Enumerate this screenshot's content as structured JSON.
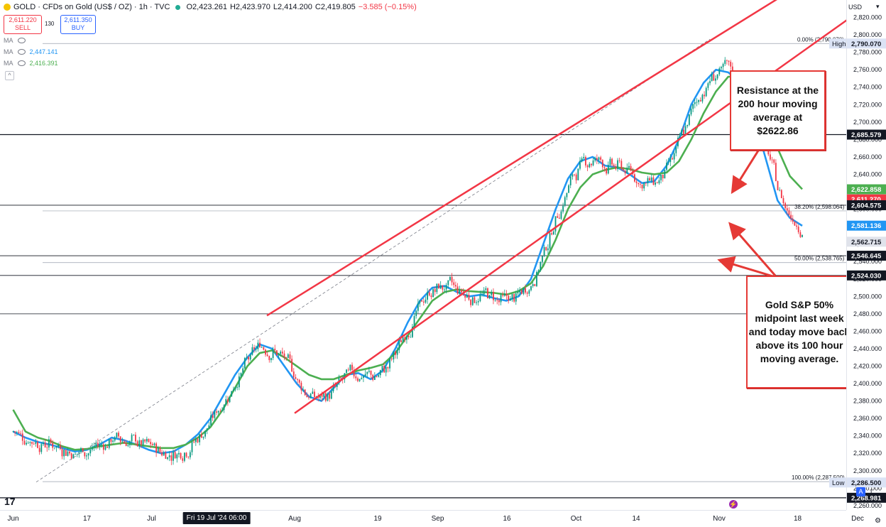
{
  "header": {
    "symbol": "GOLD · CFDs on Gold (US$ / OZ) · 1h · TVC",
    "open": "O2,423.261",
    "high": "H2,423.970",
    "low": "L2,414.200",
    "close": "C2,419.805",
    "change": "−3.585 (−0.15%)"
  },
  "trade": {
    "sell_price": "2,611.220",
    "sell_label": "SELL",
    "spread": "130",
    "buy_price": "2,611.350",
    "buy_label": "BUY"
  },
  "indicators": [
    {
      "label": "MA",
      "value": ""
    },
    {
      "label": "MA",
      "value": "2,447.141",
      "color": "#2196f3"
    },
    {
      "label": "MA",
      "value": "2,416.391",
      "color": "#4caf50"
    }
  ],
  "currency": "USD",
  "annotations": {
    "top": "Resistance at the 200 hour moving average at $2622.86",
    "bottom": "Gold S&P 50% midpoint last week and today move back above its 100 hour moving average."
  },
  "x_axis": {
    "crosshair_label": "Fri 19 Jul '24  06:00"
  },
  "chart_data": {
    "type": "line",
    "title": "",
    "xlabel": "",
    "ylabel": "",
    "ylim": [
      2255,
      2840
    ],
    "x_ticks": [
      "Jun",
      "17",
      "Jul",
      "Aug",
      "19",
      "Sep",
      "16",
      "Oct",
      "14",
      "Nov",
      "18",
      "Dec"
    ],
    "y_ticks": [
      2260,
      2280,
      2300,
      2320,
      2340,
      2360,
      2380,
      2400,
      2420,
      2440,
      2460,
      2480,
      2500,
      2520,
      2540,
      2560,
      2580,
      2600,
      2620,
      2640,
      2660,
      2680,
      2700,
      2720,
      2740,
      2760,
      2780,
      2800,
      2820
    ],
    "price_labels": [
      {
        "label": "2,790.070",
        "value": 2790.07,
        "color": "#dbe3f5",
        "text_color": "#131722",
        "tag": "High"
      },
      {
        "label": "2,685.579",
        "value": 2685.579,
        "color": "#131722",
        "text_color": "#ffffff"
      },
      {
        "label": "2,622.858",
        "value": 2622.858,
        "color": "#4caf50",
        "text_color": "#ffffff"
      },
      {
        "label": "2,611.270",
        "value": 2611.27,
        "color": "#f23645",
        "text_color": "#ffffff"
      },
      {
        "label": "2,604.575",
        "value": 2604.575,
        "color": "#131722",
        "text_color": "#ffffff"
      },
      {
        "label": "2,581.136",
        "value": 2581.136,
        "color": "#2196f3",
        "text_color": "#ffffff"
      },
      {
        "label": "2,562.715",
        "value": 2562.715,
        "color": "#e0e3eb",
        "text_color": "#131722"
      },
      {
        "label": "2,546.645",
        "value": 2546.645,
        "color": "#131722",
        "text_color": "#ffffff"
      },
      {
        "label": "2,524.030",
        "value": 2524.03,
        "color": "#131722",
        "text_color": "#ffffff"
      },
      {
        "label": "2,286.500",
        "value": 2286.5,
        "color": "#dbe3f5",
        "text_color": "#131722",
        "tag": "Low"
      },
      {
        "label": "2,268.981",
        "value": 2268.981,
        "color": "#131722",
        "text_color": "#ffffff"
      }
    ],
    "fib_levels": [
      {
        "label": "0.00% (2,790.070)",
        "value": 2790.07
      },
      {
        "label": "38.20% (2,598.064)",
        "value": 2598.064
      },
      {
        "label": "50.00% (2,538.765)",
        "value": 2538.765
      },
      {
        "label": "100.00% (2,287.500)",
        "value": 2287.5
      }
    ],
    "horizontal_lines": [
      2685.579,
      2604.575,
      2546.645,
      2524.03,
      2480,
      2268.981
    ],
    "series": [
      {
        "name": "MA",
        "color": "#2196f3",
        "values": [
          2345,
          2338,
          2333,
          2330,
          2326,
          2322,
          2324,
          2330,
          2338,
          2335,
          2330,
          2324,
          2320,
          2322,
          2330,
          2342,
          2360,
          2385,
          2410,
          2430,
          2445,
          2440,
          2420,
          2400,
          2385,
          2380,
          2395,
          2410,
          2412,
          2405,
          2415,
          2440,
          2470,
          2495,
          2510,
          2512,
          2505,
          2500,
          2502,
          2498,
          2495,
          2500,
          2520,
          2560,
          2600,
          2635,
          2655,
          2660,
          2650,
          2648,
          2640,
          2630,
          2632,
          2650,
          2680,
          2720,
          2745,
          2760,
          2757,
          2745,
          2710,
          2660,
          2610,
          2590,
          2581
        ]
      },
      {
        "name": "MA",
        "color": "#4caf50",
        "values": [
          2370,
          2345,
          2338,
          2334,
          2328,
          2324,
          2325,
          2328,
          2330,
          2332,
          2330,
          2328,
          2326,
          2326,
          2330,
          2338,
          2350,
          2370,
          2395,
          2420,
          2435,
          2438,
          2430,
          2420,
          2410,
          2405,
          2405,
          2410,
          2415,
          2418,
          2422,
          2435,
          2455,
          2475,
          2495,
          2505,
          2508,
          2506,
          2505,
          2504,
          2502,
          2506,
          2515,
          2535,
          2565,
          2600,
          2625,
          2640,
          2645,
          2648,
          2646,
          2642,
          2640,
          2642,
          2655,
          2680,
          2710,
          2735,
          2752,
          2752,
          2740,
          2710,
          2670,
          2638,
          2623
        ]
      }
    ],
    "channel_lines": [
      {
        "from": [
          "2024-06-06",
          2287
        ],
        "to": [
          "2024-10-30",
          2795
        ],
        "style": "dashed"
      },
      {
        "from": [
          "2024-07-26",
          2478
        ],
        "to": [
          "2024-11-30",
          2895
        ],
        "style": "solid"
      },
      {
        "from": [
          "2024-08-01",
          2366
        ],
        "to": [
          "2024-11-30",
          2822
        ],
        "style": "solid"
      }
    ]
  }
}
